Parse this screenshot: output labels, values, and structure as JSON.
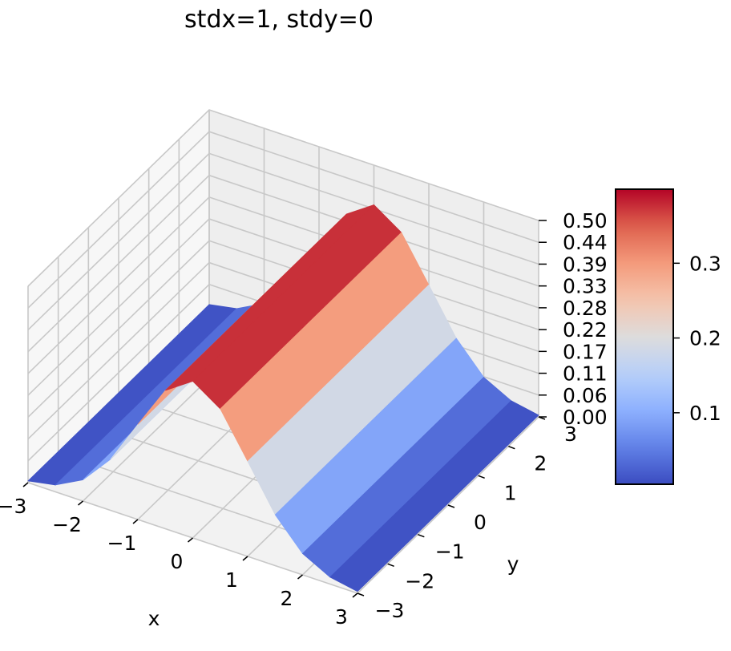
{
  "chart_data": {
    "type": "surface3d",
    "title": "stdx=1, stdy=0",
    "xlabel": "x",
    "ylabel": "y",
    "zlabel": "",
    "x_ticks": [
      "−3",
      "−2",
      "−1",
      "0",
      "1",
      "2",
      "3"
    ],
    "y_ticks": [
      "−3",
      "−2",
      "−1",
      "0",
      "1",
      "2",
      "3"
    ],
    "z_ticks": [
      "0.00",
      "0.06",
      "0.11",
      "0.17",
      "0.22",
      "0.28",
      "0.33",
      "0.39",
      "0.44",
      "0.50"
    ],
    "xlim": [
      -3,
      3
    ],
    "ylim": [
      -3,
      3
    ],
    "zlim": [
      0,
      0.5
    ],
    "function": "z = exp(-x^2/2) / sqrt(2*pi)  (Gaussian in x, constant along y)",
    "surface_profile": {
      "x": [
        -3,
        -2.5,
        -2,
        -1.5,
        -1,
        -0.5,
        0,
        0.5,
        1,
        1.5,
        2,
        2.5,
        3
      ],
      "z": [
        0.0044,
        0.0175,
        0.054,
        0.1295,
        0.242,
        0.352,
        0.399,
        0.352,
        0.242,
        0.1295,
        0.054,
        0.0175,
        0.0044
      ]
    },
    "colormap": "coolwarm",
    "colorbar": {
      "ticks": [
        "0.1",
        "0.2",
        "0.3"
      ],
      "range": [
        0.0044,
        0.399
      ]
    },
    "grid": true
  }
}
